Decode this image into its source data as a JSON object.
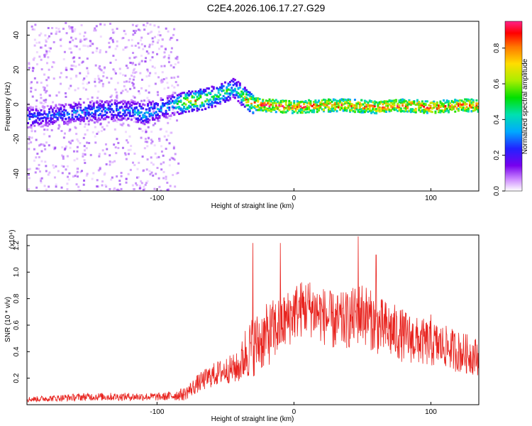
{
  "title": "C2E4.2026.106.17.27.G29",
  "colors": {
    "snr_line": "#e8231e",
    "axis": "#000000",
    "background": "#ffffff"
  },
  "chart_data": [
    {
      "type": "heatmap",
      "xlabel": "Height of straight line (km)",
      "ylabel": "Frequency (Hz)",
      "xlim": [
        -195,
        135
      ],
      "ylim": [
        -50,
        48
      ],
      "xticks": [
        -100,
        0,
        100
      ],
      "yticks": [
        -40,
        -20,
        0,
        20,
        40
      ],
      "colorbar": {
        "label": "Normalized spectral amplitude",
        "range": [
          0,
          0.95
        ],
        "ticks": [
          0.0,
          0.2,
          0.4,
          0.6,
          0.8
        ],
        "tick_labels": [
          "0.0",
          "0.2",
          "0.4",
          "0.6",
          "0.8"
        ]
      },
      "ridge_track": {
        "x": [
          -195,
          -180,
          -160,
          -140,
          -120,
          -110,
          -100,
          -90,
          -80,
          -70,
          -60,
          -50,
          -45,
          -40,
          -35,
          -30,
          -20,
          0,
          20,
          40,
          60,
          80,
          100,
          120,
          135
        ],
        "y": [
          -7,
          -6,
          -4,
          -3,
          -3,
          -5,
          -2,
          0,
          2,
          3,
          5,
          8,
          10,
          7,
          3,
          1,
          0,
          -1,
          0,
          0,
          -1,
          0,
          -1,
          0,
          0
        ],
        "amplitude": [
          0.3,
          0.3,
          0.35,
          0.35,
          0.35,
          0.45,
          0.4,
          0.4,
          0.75,
          0.8,
          0.6,
          0.6,
          0.45,
          0.55,
          0.85,
          0.9,
          0.92,
          0.92,
          0.9,
          0.88,
          0.9,
          0.92,
          0.9,
          0.9,
          0.9
        ]
      }
    },
    {
      "type": "line",
      "xlabel": "Height of straight line (km)",
      "ylabel": "SNR (10 * v/v)",
      "scale_label": "(x10⁴)",
      "xlim": [
        -195,
        135
      ],
      "ylim": [
        0,
        1.28
      ],
      "xticks": [
        -100,
        0,
        100
      ],
      "yticks": [
        0.2,
        0.4,
        0.6,
        0.8,
        1.0,
        1.2
      ],
      "ytick_labels": [
        "0.2",
        "0.4",
        "0.6",
        "0.8",
        "1.0",
        "1.2"
      ],
      "series": [
        {
          "name": "SNR",
          "envelope_x": [
            -195,
            -150,
            -120,
            -95,
            -80,
            -70,
            -60,
            -50,
            -40,
            -35,
            -25,
            -15,
            -5,
            0,
            10,
            20,
            30,
            40,
            50,
            60,
            70,
            80,
            90,
            100,
            110,
            120,
            135
          ],
          "envelope_mean": [
            0.04,
            0.06,
            0.06,
            0.06,
            0.08,
            0.16,
            0.22,
            0.26,
            0.28,
            0.4,
            0.48,
            0.56,
            0.64,
            0.7,
            0.74,
            0.68,
            0.62,
            0.64,
            0.7,
            0.6,
            0.56,
            0.52,
            0.48,
            0.46,
            0.44,
            0.4,
            0.36
          ],
          "envelope_spread": [
            0.02,
            0.03,
            0.03,
            0.03,
            0.05,
            0.07,
            0.09,
            0.1,
            0.12,
            0.22,
            0.24,
            0.24,
            0.22,
            0.22,
            0.22,
            0.22,
            0.22,
            0.22,
            0.24,
            0.22,
            0.22,
            0.2,
            0.18,
            0.18,
            0.16,
            0.16,
            0.14
          ],
          "peaks": [
            {
              "x": -30,
              "y": 1.22
            },
            {
              "x": -10,
              "y": 1.22
            },
            {
              "x": 47,
              "y": 1.27
            },
            {
              "x": 60,
              "y": 1.13
            },
            {
              "x": 100,
              "y": 0.68
            }
          ]
        }
      ]
    }
  ]
}
